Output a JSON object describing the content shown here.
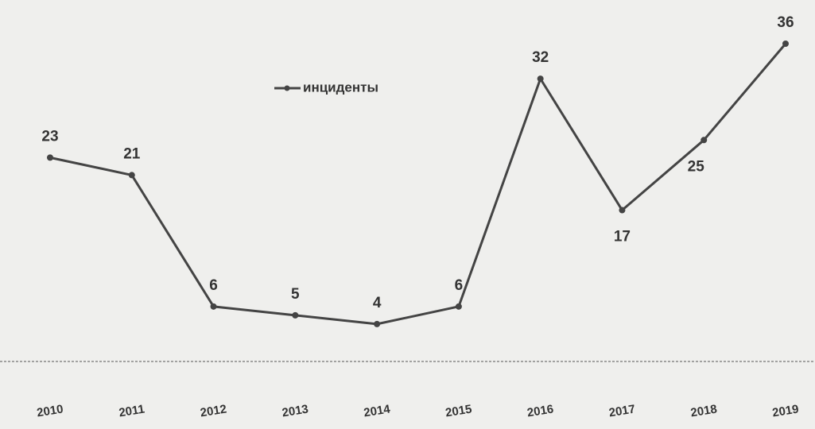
{
  "chart_data": {
    "type": "line",
    "categories": [
      "2010",
      "2011",
      "2012",
      "2013",
      "2014",
      "2015",
      "2016",
      "2017",
      "2018",
      "2019"
    ],
    "series": [
      {
        "name": "инциденты",
        "color": "#444444",
        "values": [
          23,
          21,
          6,
          5,
          4,
          6,
          32,
          17,
          25,
          36
        ]
      }
    ],
    "legend": "top"
  }
}
